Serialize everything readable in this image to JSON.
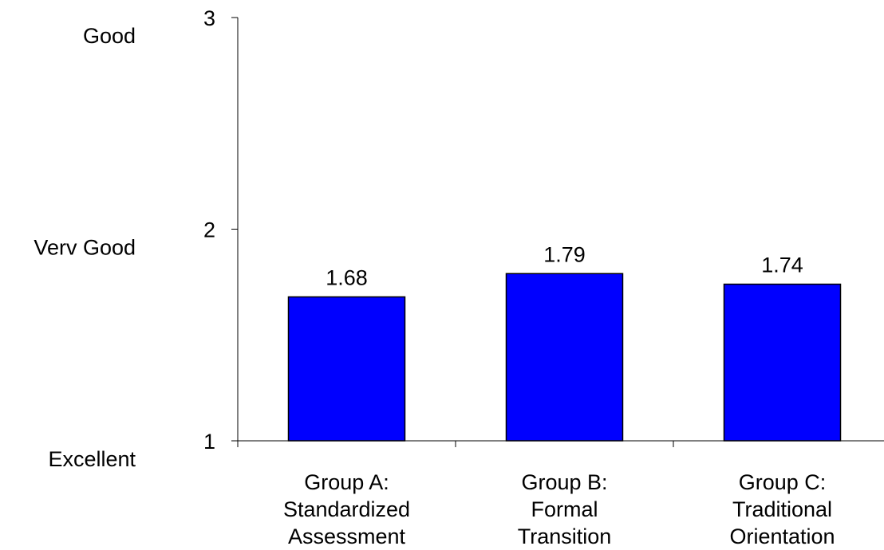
{
  "chart_data": {
    "type": "bar",
    "categories": [
      [
        "Group A:",
        "Standardized",
        "Assessment"
      ],
      [
        "Group B:",
        "Formal",
        "Transition"
      ],
      [
        "Group C:",
        "Traditional",
        "Orientation"
      ]
    ],
    "values": [
      1.68,
      1.79,
      1.74
    ],
    "data_labels": [
      "1.68",
      "1.79",
      "1.74"
    ],
    "ylim": [
      1,
      3
    ],
    "yticks": [
      1,
      2,
      3
    ],
    "ytick_labels": [
      "1",
      "2",
      "3"
    ],
    "rating_labels": [
      "Excellent",
      "Verv Good",
      "Good"
    ],
    "title": "",
    "xlabel": "",
    "ylabel": "",
    "grid": false,
    "legend": false,
    "colors": {
      "bar_fill": "#0000ff",
      "bar_stroke": "#000000",
      "axis": "#000000"
    }
  }
}
